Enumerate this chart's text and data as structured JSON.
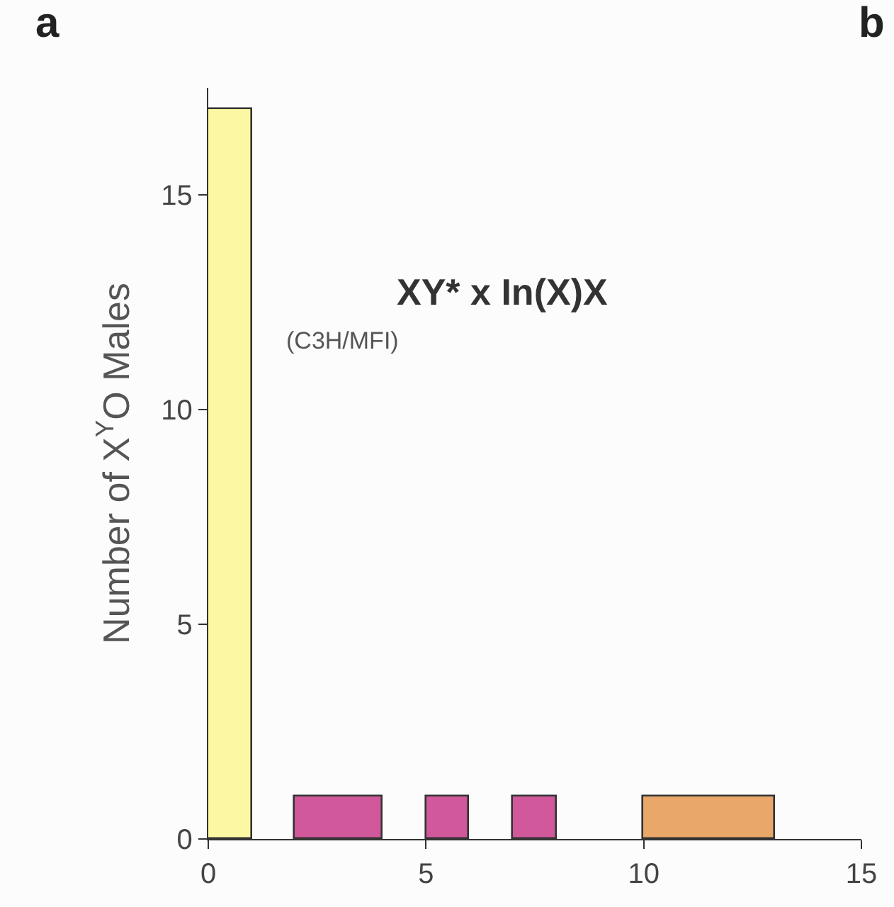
{
  "chart_data": {
    "type": "histogram",
    "title": "XY* x In(X)X",
    "subtitle": "(C3H/MFI)",
    "ylabel": "Number of X$^{Y}$O Males",
    "annotations": [
      "a",
      "b"
    ],
    "bins": [
      0,
      1,
      2,
      4,
      5,
      6,
      7,
      8,
      10,
      13
    ],
    "values": [
      17,
      0,
      1,
      0,
      1,
      0,
      1,
      0,
      1
    ],
    "colors": [
      "#fbf7a2",
      "#d1589a",
      "#d1589a",
      "#d1589a",
      "#d1589a",
      "#d1589a",
      "#d1589a",
      "#e9a86a",
      "#e9a86a"
    ],
    "xlim": [
      0,
      15
    ],
    "xticks": [
      0,
      5,
      10,
      15
    ],
    "ylim": [
      0,
      17.5
    ],
    "yticks": [
      0,
      5,
      10,
      15
    ]
  }
}
